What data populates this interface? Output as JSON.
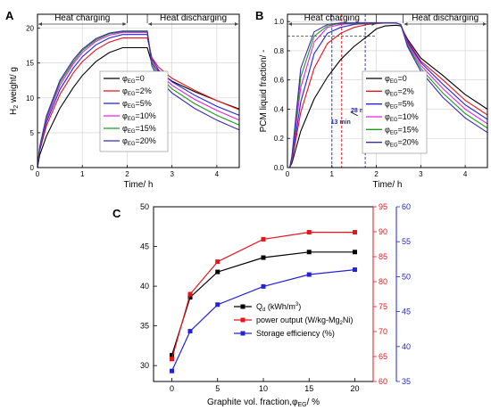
{
  "panels": {
    "A": {
      "letter": "A"
    },
    "B": {
      "letter": "B"
    },
    "C": {
      "letter": "C"
    }
  },
  "chart_data": [
    {
      "panel": "A",
      "type": "line",
      "xlabel": "Time/ h",
      "ylabel_main": "H",
      "ylabel_sub": "2",
      "ylabel_rest": " weight/ g",
      "xlim": [
        0,
        4.5
      ],
      "ylim": [
        0,
        22
      ],
      "xticks": [
        0,
        1,
        2,
        3,
        4
      ],
      "yticks": [
        0,
        5,
        10,
        15,
        20
      ],
      "grid": true,
      "legend_position": "right",
      "legend_sym": "φ",
      "legend_sub": "EG",
      "annotations": [
        {
          "text": "Heat charging",
          "x_from": 0,
          "x_to": 2.0
        },
        {
          "text": "Heat discharging",
          "x_from": 2.45,
          "x_to": 4.5
        }
      ],
      "series": [
        {
          "name": "=0",
          "color": "#000000",
          "x": [
            0,
            0.05,
            0.2,
            0.5,
            0.8,
            1.0,
            1.3,
            1.6,
            1.9,
            2.0,
            2.45,
            2.55,
            2.7,
            3.0,
            3.5,
            4.0,
            4.5
          ],
          "y": [
            0,
            1.8,
            4.5,
            8.5,
            11.5,
            13.2,
            15.2,
            16.5,
            17.2,
            17.2,
            17.2,
            15.0,
            13.8,
            12.4,
            10.9,
            9.6,
            8.4
          ]
        },
        {
          "name": "=2%",
          "color": "#e8141c",
          "x": [
            0,
            0.05,
            0.2,
            0.5,
            0.8,
            1.0,
            1.3,
            1.6,
            1.9,
            2.0,
            2.45,
            2.55,
            2.7,
            3.0,
            3.5,
            4.0,
            4.5
          ],
          "y": [
            0,
            2.4,
            6.0,
            10.5,
            13.6,
            15.2,
            16.9,
            18.0,
            18.6,
            18.6,
            18.6,
            15.8,
            14.4,
            12.8,
            11.1,
            9.6,
            8.3
          ]
        },
        {
          "name": "=5%",
          "color": "#2222dd",
          "x": [
            0,
            0.05,
            0.2,
            0.5,
            0.8,
            1.0,
            1.3,
            1.6,
            1.9,
            2.0,
            2.45,
            2.55,
            2.7,
            3.0,
            3.5,
            4.0,
            4.5
          ],
          "y": [
            0,
            2.6,
            6.5,
            11.2,
            14.3,
            15.9,
            17.6,
            18.6,
            19.1,
            19.1,
            19.1,
            15.6,
            14.0,
            12.3,
            10.4,
            8.8,
            7.5
          ]
        },
        {
          "name": "=10%",
          "color": "#e620e6",
          "x": [
            0,
            0.05,
            0.2,
            0.5,
            0.8,
            1.0,
            1.3,
            1.6,
            1.9,
            2.0,
            2.45,
            2.55,
            2.7,
            3.0,
            3.5,
            4.0,
            4.5
          ],
          "y": [
            0,
            2.8,
            6.9,
            11.8,
            14.9,
            16.5,
            18.1,
            19.0,
            19.4,
            19.4,
            19.4,
            15.3,
            13.6,
            11.8,
            9.8,
            8.2,
            6.8
          ]
        },
        {
          "name": "=15%",
          "color": "#1a9c1a",
          "x": [
            0,
            0.05,
            0.2,
            0.5,
            0.8,
            1.0,
            1.3,
            1.6,
            1.9,
            2.0,
            2.45,
            2.55,
            2.7,
            3.0,
            3.5,
            4.0,
            4.5
          ],
          "y": [
            0,
            2.9,
            7.2,
            12.2,
            15.2,
            16.8,
            18.3,
            19.2,
            19.5,
            19.5,
            19.5,
            15.0,
            13.2,
            11.3,
            9.2,
            7.5,
            6.1
          ]
        },
        {
          "name": "=20%",
          "color": "#3a2ab0",
          "x": [
            0,
            0.05,
            0.2,
            0.5,
            0.8,
            1.0,
            1.3,
            1.6,
            1.9,
            2.0,
            2.45,
            2.55,
            2.7,
            3.0,
            3.5,
            4.0,
            4.5
          ],
          "y": [
            0,
            3.0,
            7.4,
            12.5,
            15.5,
            17.0,
            18.5,
            19.3,
            19.6,
            19.6,
            19.6,
            14.6,
            12.7,
            10.7,
            8.5,
            6.8,
            5.4
          ]
        }
      ]
    },
    {
      "panel": "B",
      "type": "line",
      "xlabel": "Time/ h",
      "ylabel": "PCM liquid fraction/ -",
      "xlim": [
        0,
        4.5
      ],
      "ylim": [
        0,
        1.05
      ],
      "xticks": [
        0,
        1,
        2,
        3,
        4
      ],
      "yticks": [
        0.0,
        0.2,
        0.4,
        0.6,
        0.8,
        1.0
      ],
      "ytick_labels": [
        "0.0",
        "0.2",
        "0.4",
        "0.6",
        "0.8",
        "1.0"
      ],
      "grid": true,
      "legend_position": "right",
      "legend_sym": "φ",
      "legend_sub": "EG",
      "annotations": [
        {
          "text": "Heat charging",
          "x_from": 0,
          "x_to": 2.0
        },
        {
          "text": "Heat discharging",
          "x_from": 2.6,
          "x_to": 4.5
        },
        {
          "text": "13 min",
          "color": "#2222dd",
          "x": 1.2,
          "y": 0.3
        },
        {
          "text": "28 min",
          "color": "#2222dd",
          "x": 1.65,
          "y": 0.38
        }
      ],
      "reference_lines": [
        {
          "type": "h",
          "y": 0.9,
          "x_to": 2.0
        },
        {
          "type": "v",
          "x": 1.0,
          "color": "#2222dd"
        },
        {
          "type": "v",
          "x": 1.22,
          "color": "#e8141c"
        },
        {
          "type": "v",
          "x": 1.75,
          "color": "#2222dd"
        }
      ],
      "series": [
        {
          "name": "=0",
          "color": "#000000",
          "x": [
            0,
            0.05,
            0.1,
            0.3,
            0.6,
            0.9,
            1.2,
            1.5,
            1.8,
            2.0,
            2.2,
            2.45,
            2.55,
            2.7,
            3.0,
            3.5,
            4.0,
            4.5
          ],
          "y": [
            0,
            0,
            0.03,
            0.25,
            0.47,
            0.62,
            0.74,
            0.83,
            0.9,
            0.95,
            0.97,
            0.975,
            0.97,
            0.88,
            0.75,
            0.63,
            0.5,
            0.4
          ]
        },
        {
          "name": "=2%",
          "color": "#e8141c",
          "x": [
            0,
            0.05,
            0.1,
            0.3,
            0.6,
            0.9,
            1.2,
            1.5,
            1.8,
            2.0,
            2.2,
            2.45,
            2.55,
            2.7,
            3.0,
            3.5,
            4.0,
            4.5
          ],
          "y": [
            0,
            0,
            0.04,
            0.38,
            0.68,
            0.85,
            0.92,
            0.96,
            0.98,
            0.985,
            0.99,
            0.99,
            0.98,
            0.87,
            0.73,
            0.6,
            0.46,
            0.36
          ]
        },
        {
          "name": "=5%",
          "color": "#2222dd",
          "x": [
            0,
            0.05,
            0.1,
            0.3,
            0.6,
            0.9,
            1.2,
            1.5,
            1.8,
            2.0,
            2.2,
            2.45,
            2.55,
            2.7,
            3.0,
            3.5,
            4.0,
            4.5
          ],
          "y": [
            0,
            0,
            0.05,
            0.45,
            0.78,
            0.92,
            0.96,
            0.98,
            0.99,
            0.99,
            0.99,
            0.99,
            0.98,
            0.86,
            0.72,
            0.57,
            0.43,
            0.33
          ]
        },
        {
          "name": "=10%",
          "color": "#e620e6",
          "x": [
            0,
            0.05,
            0.1,
            0.3,
            0.6,
            0.9,
            1.2,
            1.5,
            1.8,
            2.0,
            2.2,
            2.45,
            2.55,
            2.7,
            3.0,
            3.5,
            4.0,
            4.5
          ],
          "y": [
            0,
            0,
            0.06,
            0.55,
            0.86,
            0.96,
            0.98,
            0.99,
            0.99,
            0.99,
            0.99,
            0.99,
            0.98,
            0.85,
            0.7,
            0.54,
            0.4,
            0.3
          ]
        },
        {
          "name": "=15%",
          "color": "#1a9c1a",
          "x": [
            0,
            0.05,
            0.1,
            0.3,
            0.6,
            0.9,
            1.2,
            1.5,
            1.8,
            2.0,
            2.2,
            2.45,
            2.55,
            2.7,
            3.0,
            3.5,
            4.0,
            4.5
          ],
          "y": [
            0,
            0,
            0.07,
            0.62,
            0.9,
            0.97,
            0.99,
            0.99,
            0.99,
            0.99,
            0.99,
            0.99,
            0.98,
            0.84,
            0.68,
            0.51,
            0.37,
            0.27
          ]
        },
        {
          "name": "=20%",
          "color": "#3a2ab0",
          "x": [
            0,
            0.05,
            0.1,
            0.3,
            0.6,
            0.9,
            1.2,
            1.5,
            1.8,
            2.0,
            2.2,
            2.45,
            2.55,
            2.7,
            3.0,
            3.5,
            4.0,
            4.5
          ],
          "y": [
            0,
            0,
            0.08,
            0.68,
            0.93,
            0.98,
            0.99,
            0.99,
            0.99,
            0.99,
            0.99,
            0.99,
            0.98,
            0.83,
            0.66,
            0.48,
            0.34,
            0.24
          ]
        }
      ]
    },
    {
      "panel": "C",
      "type": "line",
      "xlabel": "Graphite vol. fraction,",
      "xlabel_sym": "φ",
      "xlabel_sub": "EG",
      "xlabel_tail": "/ %",
      "xlim": [
        -2,
        22
      ],
      "xticks": [
        0,
        5,
        10,
        15,
        20
      ],
      "grid": false,
      "legend_position": "center-right",
      "axes": [
        {
          "id": "left",
          "color": "#000000",
          "ylim": [
            28,
            50
          ],
          "yticks": [
            30,
            35,
            40,
            45,
            50
          ]
        },
        {
          "id": "right1",
          "color": "#e8141c",
          "ylim": [
            60,
            95
          ],
          "yticks": [
            60,
            65,
            70,
            75,
            80,
            85,
            90,
            95
          ]
        },
        {
          "id": "right2",
          "color": "#2222dd",
          "ylim": [
            35,
            60
          ],
          "yticks": [
            35,
            40,
            45,
            50,
            55,
            60
          ]
        }
      ],
      "series": [
        {
          "name": "Q",
          "name_sub": "d",
          "name_tail": " (kWh/m",
          "name_sup": "3",
          "name_end": ")",
          "axis": "left",
          "color": "#000000",
          "x": [
            0,
            2,
            5,
            10,
            15,
            20
          ],
          "y": [
            31.3,
            38.6,
            41.8,
            43.6,
            44.3,
            44.3
          ]
        },
        {
          "name": "power output (W/kg-Mg",
          "name_sub": "2",
          "name_end": "Ni)",
          "axis": "right1",
          "color": "#e8141c",
          "x": [
            0,
            2,
            5,
            10,
            15,
            20
          ],
          "y": [
            64.5,
            77.5,
            84.0,
            88.5,
            89.9,
            89.9
          ]
        },
        {
          "name": "Storage efficiency (%)",
          "axis": "right2",
          "color": "#2222dd",
          "x": [
            0,
            2,
            5,
            10,
            15,
            20
          ],
          "y": [
            36.5,
            42.2,
            46.0,
            48.6,
            50.3,
            51.0
          ]
        }
      ]
    }
  ]
}
